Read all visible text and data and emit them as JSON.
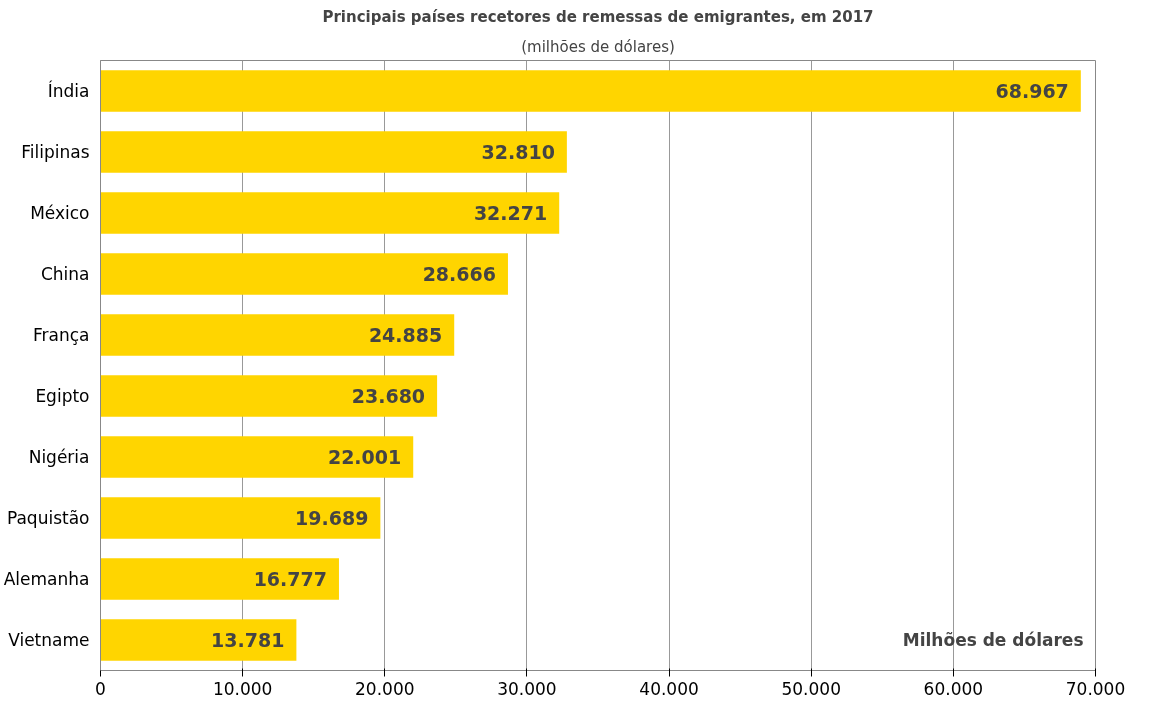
{
  "chart_data": {
    "type": "bar",
    "orientation": "horizontal",
    "title": "Principais países recetores de remessas de emigrantes, em 2017",
    "subtitle": "(milhões de dólares)",
    "xlabel": "Milhões de dólares",
    "categories": [
      "Índia",
      "Filipinas",
      "México",
      "China",
      "França",
      "Egipto",
      "Nigéria",
      "Paquistão",
      "Alemanha",
      "Vietname"
    ],
    "values": [
      68967,
      32810,
      32271,
      28666,
      24885,
      23680,
      22001,
      19689,
      16777,
      13781
    ],
    "value_labels": [
      "68.967",
      "32.810",
      "32.271",
      "28.666",
      "24.885",
      "23.680",
      "22.001",
      "19.689",
      "16.777",
      "13.781"
    ],
    "color": "#ffd500",
    "xlim": [
      0,
      70000
    ],
    "xticks": [
      {
        "value": 0,
        "label": "0"
      },
      {
        "value": 10000,
        "label": "10.000"
      },
      {
        "value": 20000,
        "label": "20.000"
      },
      {
        "value": 30000,
        "label": "30.000"
      },
      {
        "value": 40000,
        "label": "40.000"
      },
      {
        "value": 50000,
        "label": "50.000"
      },
      {
        "value": 60000,
        "label": "60.000"
      },
      {
        "value": 70000,
        "label": "70.000"
      }
    ],
    "grid": "x"
  }
}
